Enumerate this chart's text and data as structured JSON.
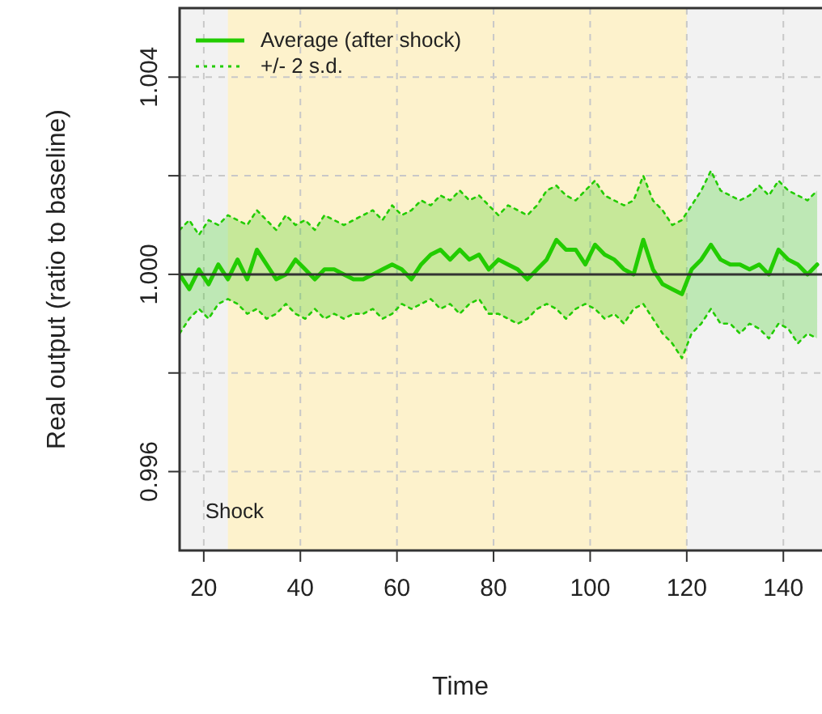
{
  "chart_data": {
    "type": "line",
    "xlabel": "Time",
    "ylabel": "Real output (ratio to baseline)",
    "x": [
      15,
      17,
      19,
      21,
      23,
      25,
      27,
      29,
      31,
      33,
      35,
      37,
      39,
      41,
      43,
      45,
      47,
      49,
      51,
      53,
      55,
      57,
      59,
      61,
      63,
      65,
      67,
      69,
      71,
      73,
      75,
      77,
      79,
      81,
      83,
      85,
      87,
      89,
      91,
      93,
      95,
      97,
      99,
      101,
      103,
      105,
      107,
      109,
      111,
      113,
      115,
      117,
      119,
      121,
      123,
      125,
      127,
      129,
      131,
      133,
      135,
      137,
      139,
      141,
      143,
      145,
      147
    ],
    "series": [
      {
        "name": "Average (after shock)",
        "color": "#22cc00",
        "line_style": "solid",
        "values": [
          1.0,
          0.9997,
          1.0001,
          0.9998,
          1.0002,
          0.9999,
          1.0003,
          0.9999,
          1.0005,
          1.0002,
          0.9999,
          1.0,
          1.0003,
          1.0001,
          0.9999,
          1.0001,
          1.0001,
          1.0,
          0.9999,
          0.9999,
          1.0,
          1.0001,
          1.0002,
          1.0001,
          0.9999,
          1.0002,
          1.0004,
          1.0005,
          1.0003,
          1.0005,
          1.0003,
          1.0004,
          1.0001,
          1.0003,
          1.0002,
          1.0001,
          0.9999,
          1.0001,
          1.0003,
          1.0007,
          1.0005,
          1.0005,
          1.0002,
          1.0006,
          1.0004,
          1.0003,
          1.0001,
          1.0,
          1.0007,
          1.0001,
          0.9998,
          0.9997,
          0.9996,
          1.0001,
          1.0003,
          1.0006,
          1.0003,
          1.0002,
          1.0002,
          1.0001,
          1.0002,
          1.0,
          1.0005,
          1.0003,
          1.0002,
          1.0,
          1.0002
        ],
        "lower": [
          0.9988,
          0.9991,
          0.9993,
          0.9991,
          0.9994,
          0.9995,
          0.9994,
          0.9992,
          0.9993,
          0.9991,
          0.9992,
          0.9994,
          0.9992,
          0.9991,
          0.9993,
          0.9991,
          0.9992,
          0.9991,
          0.9992,
          0.9992,
          0.9993,
          0.9991,
          0.9992,
          0.9994,
          0.9993,
          0.9994,
          0.9995,
          0.9993,
          0.9994,
          0.9992,
          0.9994,
          0.9995,
          0.9992,
          0.9992,
          0.9991,
          0.999,
          0.9991,
          0.9993,
          0.9994,
          0.9993,
          0.9991,
          0.9993,
          0.9994,
          0.9993,
          0.9991,
          0.9992,
          0.999,
          0.9993,
          0.9994,
          0.9991,
          0.9988,
          0.9986,
          0.9983,
          0.9988,
          0.999,
          0.9993,
          0.999,
          0.999,
          0.9988,
          0.999,
          0.9989,
          0.9987,
          0.999,
          0.9989,
          0.9986,
          0.9988,
          0.9987
        ],
        "upper": [
          1.0009,
          1.0011,
          1.0008,
          1.0011,
          1.001,
          1.0012,
          1.0011,
          1.001,
          1.0013,
          1.0011,
          1.0009,
          1.0012,
          1.001,
          1.0011,
          1.0009,
          1.0012,
          1.0011,
          1.001,
          1.0011,
          1.0012,
          1.0013,
          1.0011,
          1.0014,
          1.0012,
          1.0013,
          1.0015,
          1.0014,
          1.0016,
          1.0015,
          1.0017,
          1.0015,
          1.0016,
          1.0014,
          1.0012,
          1.0014,
          1.0013,
          1.0012,
          1.0014,
          1.0017,
          1.0018,
          1.0016,
          1.0015,
          1.0017,
          1.0019,
          1.0016,
          1.0015,
          1.0014,
          1.0015,
          1.002,
          1.0015,
          1.0013,
          1.001,
          1.0011,
          1.0014,
          1.0017,
          1.0021,
          1.0017,
          1.0016,
          1.0015,
          1.0016,
          1.0018,
          1.0016,
          1.0019,
          1.0017,
          1.0016,
          1.0015,
          1.0017
        ]
      },
      {
        "name": "+/- 2 s.d.",
        "color": "#22cc00",
        "line_style": "dotted",
        "values": [
          1.0009,
          1.0011,
          1.0008,
          1.0011,
          1.001,
          1.0012,
          1.0011,
          1.001,
          1.0013,
          1.0011,
          1.0009,
          1.0012,
          1.001,
          1.0011,
          1.0009,
          1.0012,
          1.0011,
          1.001,
          1.0011,
          1.0012,
          1.0013,
          1.0011,
          1.0014,
          1.0012,
          1.0013,
          1.0015,
          1.0014,
          1.0016,
          1.0015,
          1.0017,
          1.0015,
          1.0016,
          1.0014,
          1.0012,
          1.0014,
          1.0013,
          1.0012,
          1.0014,
          1.0017,
          1.0018,
          1.0016,
          1.0015,
          1.0017,
          1.0019,
          1.0016,
          1.0015,
          1.0014,
          1.0015,
          1.002,
          1.0015,
          1.0013,
          1.001,
          1.0011,
          1.0014,
          1.0017,
          1.0021,
          1.0017,
          1.0016,
          1.0015,
          1.0016,
          1.0018,
          1.0016,
          1.0019,
          1.0017,
          1.0016,
          1.0015,
          1.0017
        ]
      },
      {
        "color": "#22cc00",
        "line_style": "dotted",
        "values": [
          0.9988,
          0.9991,
          0.9993,
          0.9991,
          0.9994,
          0.9995,
          0.9994,
          0.9992,
          0.9993,
          0.9991,
          0.9992,
          0.9994,
          0.9992,
          0.9991,
          0.9993,
          0.9991,
          0.9992,
          0.9991,
          0.9992,
          0.9992,
          0.9993,
          0.9991,
          0.9992,
          0.9994,
          0.9993,
          0.9994,
          0.9995,
          0.9993,
          0.9994,
          0.9992,
          0.9994,
          0.9995,
          0.9992,
          0.9992,
          0.9991,
          0.999,
          0.9991,
          0.9993,
          0.9994,
          0.9993,
          0.9991,
          0.9993,
          0.9994,
          0.9993,
          0.9991,
          0.9992,
          0.999,
          0.9993,
          0.9994,
          0.9991,
          0.9988,
          0.9986,
          0.9983,
          0.9988,
          0.999,
          0.9993,
          0.999,
          0.999,
          0.9988,
          0.999,
          0.9989,
          0.9987,
          0.999,
          0.9989,
          0.9986,
          0.9988,
          0.9987
        ]
      }
    ],
    "xlim": [
      15,
      148
    ],
    "xticks": [
      20,
      40,
      60,
      80,
      100,
      120,
      140
    ],
    "ylim": [
      0.9944,
      1.0054
    ],
    "yticks": [
      0.996,
      {
        "value": 0.998,
        "label": null
      },
      {
        "value": 1,
        "label": "1.000"
      },
      {
        "value": 1.002,
        "label": null
      },
      1.004
    ],
    "grid": true,
    "legend": "top left",
    "marker": "none",
    "ref_lines": [
      {
        "axis": "y",
        "value": 1,
        "color": "#333333"
      }
    ],
    "bands": [
      {
        "axis": "x",
        "from": 25,
        "to": 120,
        "label": "Shock",
        "color": "#fdf2cc"
      }
    ]
  }
}
